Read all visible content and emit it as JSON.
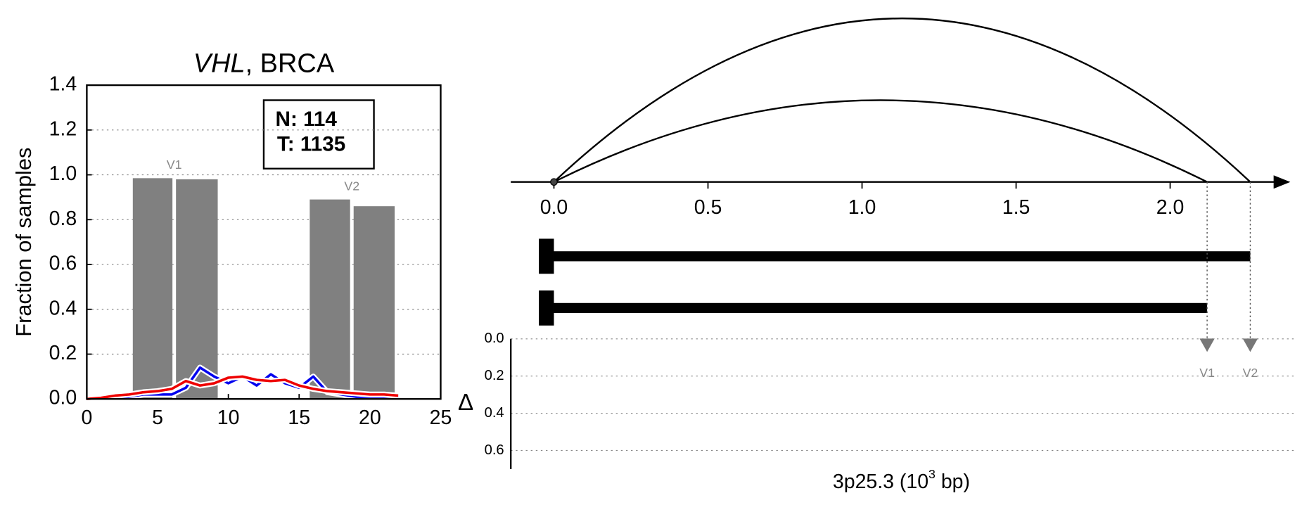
{
  "chart_data": [
    {
      "type": "bar",
      "title_parts": [
        "VHL",
        ", BRCA"
      ],
      "y_label": "Fraction of samples",
      "xlim": [
        0,
        25
      ],
      "xticks": [
        0,
        5,
        10,
        15,
        20,
        25
      ],
      "ylim": [
        0,
        1.4
      ],
      "yticks": [
        {
          "value": 0,
          "label": "0.0"
        },
        {
          "value": 0.2,
          "label": "0.2"
        },
        {
          "value": 0.4,
          "label": "0.4"
        },
        {
          "value": 0.6,
          "label": "0.6"
        },
        {
          "value": 0.8,
          "label": "0.8"
        },
        {
          "value": 1.0,
          "label": "1.0"
        },
        {
          "value": 1.2,
          "label": "1.2"
        },
        {
          "value": 1.4,
          "label": "1.4"
        }
      ],
      "grid": true,
      "counts": [
        "N: 114",
        "T: 1135"
      ],
      "bars": {
        "color": "#808080",
        "x_start": [
          3.25,
          6.3,
          15.75,
          18.85
        ],
        "x_end": [
          6.05,
          9.25,
          18.6,
          21.75
        ],
        "values": [
          0.985,
          0.98,
          0.89,
          0.86
        ]
      },
      "bar_groups": [
        "V1",
        "V2"
      ],
      "series": [
        {
          "color": "#0000ee",
          "x": [
            0,
            1,
            2,
            3,
            4,
            5,
            6,
            7,
            8,
            9,
            10,
            11,
            12,
            13,
            14,
            15,
            16,
            17,
            18,
            19,
            20,
            21,
            22
          ],
          "values": [
            0,
            0,
            0.005,
            0.01,
            0.02,
            0.02,
            0.02,
            0.05,
            0.14,
            0.1,
            0.07,
            0.1,
            0.06,
            0.11,
            0.07,
            0.05,
            0.1,
            0.03,
            0.02,
            0.01,
            0.01,
            0.01,
            0.01
          ]
        },
        {
          "color": "#ee0000",
          "x": [
            0,
            1,
            2,
            3,
            4,
            5,
            6,
            7,
            8,
            9,
            10,
            11,
            12,
            13,
            14,
            15,
            16,
            17,
            18,
            19,
            20,
            21,
            22
          ],
          "values": [
            0,
            0.005,
            0.015,
            0.02,
            0.03,
            0.035,
            0.045,
            0.08,
            0.06,
            0.07,
            0.095,
            0.1,
            0.085,
            0.08,
            0.085,
            0.06,
            0.045,
            0.035,
            0.03,
            0.025,
            0.02,
            0.02,
            0.015
          ]
        }
      ]
    },
    {
      "type": "isoform",
      "xlim": [
        -0.14,
        2.39
      ],
      "xticks": [
        {
          "value": 0,
          "label": "0.0"
        },
        {
          "value": 0.5,
          "label": "0.5"
        },
        {
          "value": 1.0,
          "label": "1.0"
        },
        {
          "value": 1.5,
          "label": "1.5"
        },
        {
          "value": 2.0,
          "label": "2.0"
        }
      ],
      "ylim": [
        0,
        0.7
      ],
      "yticks": [
        {
          "value": 0,
          "label": "0.0"
        },
        {
          "value": 0.2,
          "label": "0.2"
        },
        {
          "value": 0.4,
          "label": "0.4"
        },
        {
          "value": 0.6,
          "label": "0.6"
        }
      ],
      "y_label": "Δ",
      "x_label_parts": [
        "3p25.3 (10",
        "3",
        " bp)"
      ],
      "isoforms": [
        {
          "name": "V2",
          "start": 0,
          "end": 2.26,
          "delta": 0.03
        },
        {
          "name": "V1",
          "start": 0,
          "end": 2.12,
          "delta": 0.03
        }
      ]
    }
  ]
}
